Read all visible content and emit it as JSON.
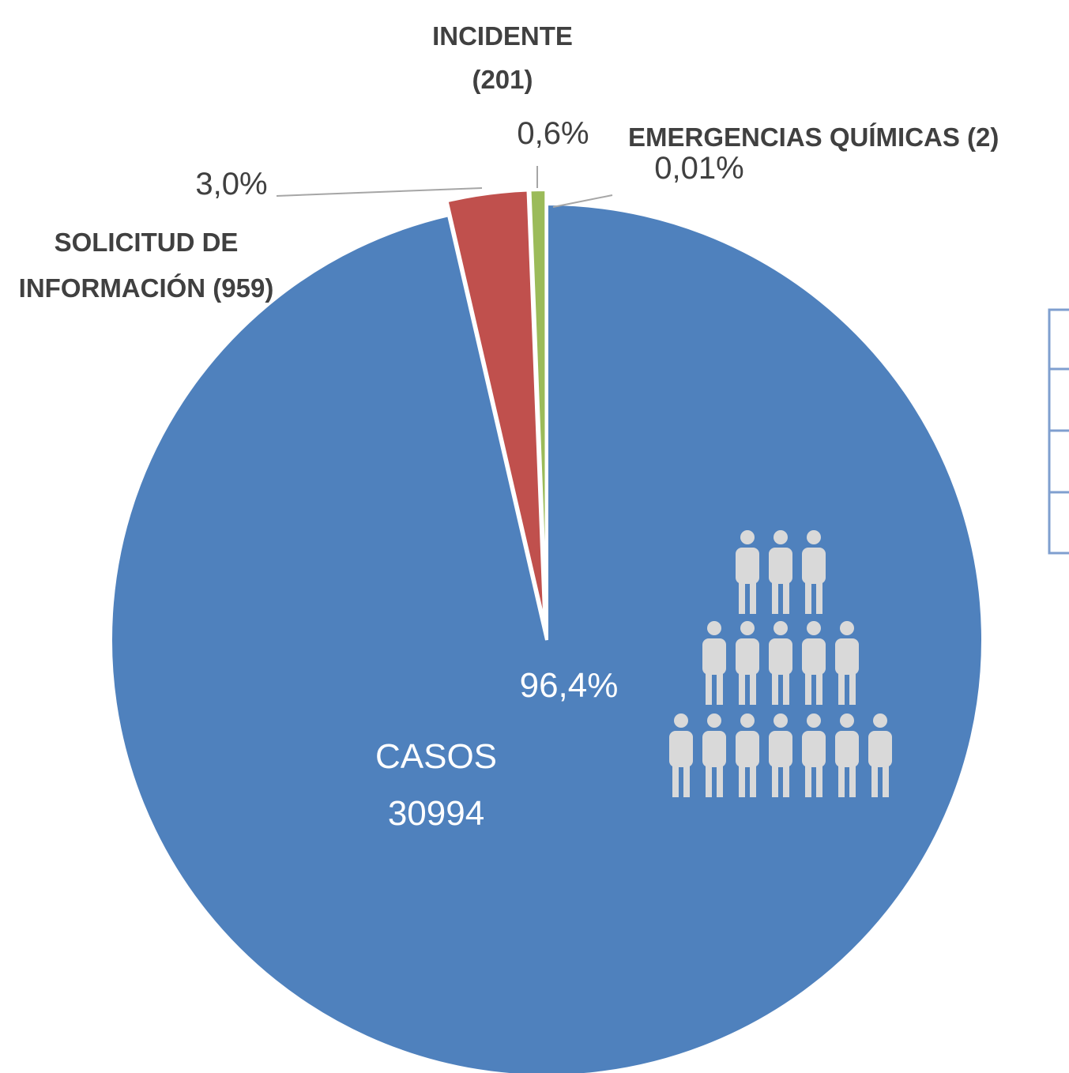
{
  "chart_data": {
    "type": "pie",
    "categories": [
      "CASOS 30994",
      "SOLICITUD DE INFORMACIÓN (959)",
      "INCIDENTE (201)",
      "EMERGENCIAS QUÍMICAS (2)"
    ],
    "values": [
      96.4,
      3.0,
      0.6,
      0.01
    ],
    "value_labels": [
      "96,4%",
      "3,0%",
      "0,6%",
      "0,01%"
    ],
    "colors": [
      "#4f81bd",
      "#c0504d",
      "#9bbb59",
      "#8064a2"
    ]
  }
}
